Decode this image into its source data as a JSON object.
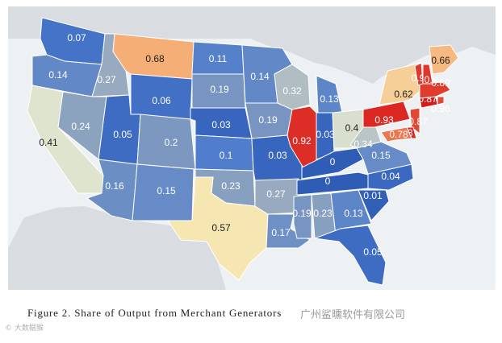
{
  "caption": "Figure 2. Share of Output from Merchant Generators",
  "watermark_right": "广州鲨曛软件有限公司",
  "watermark_left": "© 大数据猴",
  "colors": {
    "background_land_gray": "#d9dde2",
    "sea": "#eef1f4",
    "outline": "#ffffff"
  },
  "chart_data": {
    "type": "choropleth",
    "title": "",
    "color_scale": {
      "min": 0,
      "max": 0.96,
      "low_color": "#3b68c2",
      "mid_color": "#f5f2c8",
      "high_color": "#d7191c"
    },
    "states": [
      {
        "state": "WA",
        "value": 0.07
      },
      {
        "state": "OR",
        "value": 0.14
      },
      {
        "state": "CA",
        "value": 0.41
      },
      {
        "state": "ID",
        "value": 0.27
      },
      {
        "state": "NV",
        "value": 0.24
      },
      {
        "state": "MT",
        "value": 0.68
      },
      {
        "state": "WY",
        "value": 0.06
      },
      {
        "state": "UT",
        "value": 0.05
      },
      {
        "state": "AZ",
        "value": 0.16
      },
      {
        "state": "CO",
        "value": 0.2
      },
      {
        "state": "NM",
        "value": 0.15
      },
      {
        "state": "ND",
        "value": 0.11
      },
      {
        "state": "SD",
        "value": 0.19
      },
      {
        "state": "NE",
        "value": 0.03
      },
      {
        "state": "KS",
        "value": 0.1
      },
      {
        "state": "OK",
        "value": 0.23
      },
      {
        "state": "TX",
        "value": 0.57
      },
      {
        "state": "MN",
        "value": 0.14
      },
      {
        "state": "IA",
        "value": 0.19
      },
      {
        "state": "MO",
        "value": 0.03
      },
      {
        "state": "AR",
        "value": 0.27
      },
      {
        "state": "LA",
        "value": 0.17
      },
      {
        "state": "WI",
        "value": 0.32
      },
      {
        "state": "IL",
        "value": 0.92
      },
      {
        "state": "MI",
        "value": 0.13
      },
      {
        "state": "IN",
        "value": 0.03
      },
      {
        "state": "OH",
        "value": 0.4
      },
      {
        "state": "KY",
        "value": 0
      },
      {
        "state": "TN",
        "value": 0
      },
      {
        "state": "MS",
        "value": 0.19
      },
      {
        "state": "AL",
        "value": 0.23
      },
      {
        "state": "GA",
        "value": 0.13
      },
      {
        "state": "FL",
        "value": 0.05
      },
      {
        "state": "SC",
        "value": 0.01
      },
      {
        "state": "NC",
        "value": 0.04
      },
      {
        "state": "VA",
        "value": 0.15
      },
      {
        "state": "WV",
        "value": 0.34
      },
      {
        "state": "PA",
        "value": 0.93
      },
      {
        "state": "NY",
        "value": 0.62
      },
      {
        "state": "NJ",
        "value": 0.87
      },
      {
        "state": "DE",
        "value": 0.93
      },
      {
        "state": "MD",
        "value": 0.78
      },
      {
        "state": "CT",
        "value": 0.96
      },
      {
        "state": "RI",
        "value": 0.87
      },
      {
        "state": "MA",
        "value": 0.89
      },
      {
        "state": "VT",
        "value": 0.9
      },
      {
        "state": "NH",
        "value": 0.9
      },
      {
        "state": "ME",
        "value": 0.66
      }
    ]
  }
}
